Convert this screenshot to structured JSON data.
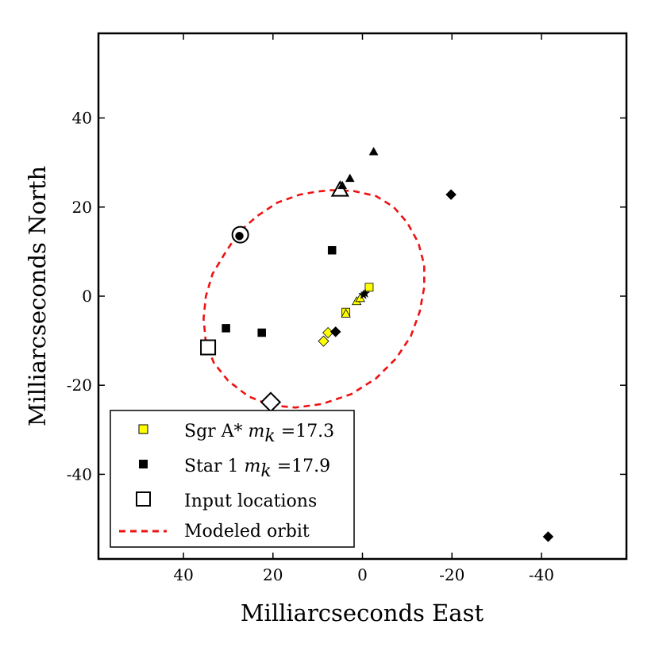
{
  "chart_data": {
    "type": "scatter",
    "title": "",
    "xlabel": "Milliarcseconds East",
    "ylabel": "Milliarcseconds North",
    "xlim": [
      59,
      -59
    ],
    "ylim": [
      -59,
      59
    ],
    "x_ticks": [
      {
        "value": 40,
        "label": "40"
      },
      {
        "value": 20,
        "label": "20"
      },
      {
        "value": 0,
        "label": "0"
      },
      {
        "value": -20,
        "label": "-20"
      },
      {
        "value": -40,
        "label": "-40"
      }
    ],
    "y_ticks": [
      {
        "value": 40,
        "label": "40"
      },
      {
        "value": 20,
        "label": "20"
      },
      {
        "value": 0,
        "label": "0"
      },
      {
        "value": -20,
        "label": "-20"
      },
      {
        "value": -40,
        "label": "-40"
      }
    ],
    "colors": {
      "sgr": "#ffff00",
      "star": "#000000",
      "orbit": "#ee1111",
      "frame": "#000000"
    },
    "series": [
      {
        "name": "Sgr A*",
        "role": "sgr",
        "legend_text": "Sgr A* ",
        "legend_math": "m",
        "legend_sub": "k",
        "legend_value": " =17.3",
        "points": [
          {
            "x": -1.5,
            "y": 2.0,
            "marker": "square"
          },
          {
            "x": 3.7,
            "y": -3.6,
            "marker": "square"
          },
          {
            "x": 3.7,
            "y": -4.0,
            "marker": "triangle"
          },
          {
            "x": 1.3,
            "y": -1.2,
            "marker": "triangle"
          },
          {
            "x": 0.5,
            "y": -0.5,
            "marker": "triangle"
          },
          {
            "x": 7.7,
            "y": -8.2,
            "marker": "diamond"
          },
          {
            "x": 8.7,
            "y": -10.1,
            "marker": "diamond"
          }
        ]
      },
      {
        "name": "Star 1",
        "role": "star",
        "legend_text": "Star 1 ",
        "legend_math": "m",
        "legend_sub": "k",
        "legend_value": " =17.9",
        "points": [
          {
            "x": 27.5,
            "y": 13.5,
            "marker": "circle"
          },
          {
            "x": 6.8,
            "y": 10.3,
            "marker": "square"
          },
          {
            "x": 30.5,
            "y": -7.2,
            "marker": "square"
          },
          {
            "x": 22.5,
            "y": -8.2,
            "marker": "square"
          },
          {
            "x": -2.5,
            "y": 32.4,
            "marker": "triangle"
          },
          {
            "x": 2.8,
            "y": 26.4,
            "marker": "triangle"
          },
          {
            "x": 4.5,
            "y": 24.8,
            "marker": "triangle"
          },
          {
            "x": -19.8,
            "y": 22.8,
            "marker": "diamond"
          },
          {
            "x": 6.0,
            "y": -8.0,
            "marker": "diamond"
          },
          {
            "x": -41.5,
            "y": -54.0,
            "marker": "diamond"
          },
          {
            "x": -0.2,
            "y": 0.3,
            "marker": "star"
          },
          {
            "x": -0.6,
            "y": 0.6,
            "marker": "star"
          }
        ]
      },
      {
        "name": "Input locations",
        "role": "input",
        "legend_text": "Input locations",
        "points": [
          {
            "x": 27.3,
            "y": 13.8,
            "marker": "circle"
          },
          {
            "x": 5.0,
            "y": 23.8,
            "marker": "triangle"
          },
          {
            "x": 34.5,
            "y": -11.5,
            "marker": "square"
          },
          {
            "x": 20.5,
            "y": -23.8,
            "marker": "diamond"
          }
        ]
      }
    ],
    "orbit": {
      "name": "Modeled orbit",
      "legend_text": "Modeled orbit",
      "style": "dashed",
      "path": [
        [
          7.0,
          23.8
        ],
        [
          2.0,
          23.6
        ],
        [
          -3.0,
          22.5
        ],
        [
          -7.0,
          20.0
        ],
        [
          -10.0,
          16.5
        ],
        [
          -12.5,
          12.0
        ],
        [
          -13.8,
          7.0
        ],
        [
          -13.8,
          2.0
        ],
        [
          -12.8,
          -3.5
        ],
        [
          -10.8,
          -9.0
        ],
        [
          -7.5,
          -14.0
        ],
        [
          -3.0,
          -18.5
        ],
        [
          2.5,
          -22.0
        ],
        [
          9.0,
          -24.2
        ],
        [
          15.0,
          -25.0
        ],
        [
          20.5,
          -24.5
        ],
        [
          25.5,
          -22.5
        ],
        [
          30.0,
          -19.0
        ],
        [
          33.2,
          -15.0
        ],
        [
          35.0,
          -10.5
        ],
        [
          35.5,
          -5.0
        ],
        [
          35.0,
          0.0
        ],
        [
          33.5,
          5.0
        ],
        [
          30.5,
          10.0
        ],
        [
          27.5,
          14.5
        ],
        [
          23.5,
          18.0
        ],
        [
          19.0,
          21.0
        ],
        [
          14.0,
          22.8
        ],
        [
          10.0,
          23.5
        ],
        [
          7.0,
          23.8
        ]
      ]
    }
  }
}
